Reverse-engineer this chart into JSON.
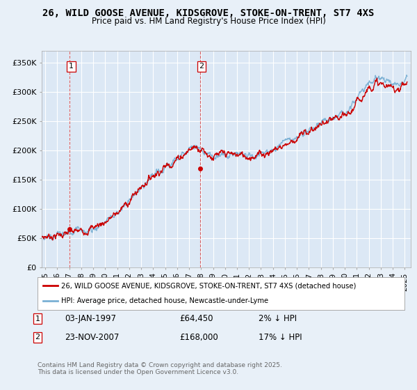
{
  "title_line1": "26, WILD GOOSE AVENUE, KIDSGROVE, STOKE-ON-TRENT, ST7 4XS",
  "title_line2": "Price paid vs. HM Land Registry's House Price Index (HPI)",
  "bg_color": "#e8f0f8",
  "plot_bg_color": "#dce8f5",
  "grid_color": "#ffffff",
  "line1_color": "#cc0000",
  "line2_color": "#7ab0d4",
  "marker1_color": "#cc0000",
  "vline_color": "#cc0000",
  "sale1_x": 1997.01,
  "sale1_y": 64450,
  "sale2_x": 2007.896,
  "sale2_y": 168000,
  "yticks": [
    0,
    50000,
    100000,
    150000,
    200000,
    250000,
    300000,
    350000
  ],
  "ytick_labels": [
    "£0",
    "£50K",
    "£100K",
    "£150K",
    "£200K",
    "£250K",
    "£300K",
    "£350K"
  ],
  "xtick_years": [
    1995,
    1996,
    1997,
    1998,
    1999,
    2000,
    2001,
    2002,
    2003,
    2004,
    2005,
    2006,
    2007,
    2008,
    2009,
    2010,
    2011,
    2012,
    2013,
    2014,
    2015,
    2016,
    2017,
    2018,
    2019,
    2020,
    2021,
    2022,
    2023,
    2024,
    2025
  ],
  "legend_label1": "26, WILD GOOSE AVENUE, KIDSGROVE, STOKE-ON-TRENT, ST7 4XS (detached house)",
  "legend_label2": "HPI: Average price, detached house, Newcastle-under-Lyme",
  "note1_label": "1",
  "note1_date": "03-JAN-1997",
  "note1_price": "£64,450",
  "note1_hpi": "2% ↓ HPI",
  "note2_label": "2",
  "note2_date": "23-NOV-2007",
  "note2_price": "£168,000",
  "note2_hpi": "17% ↓ HPI",
  "copyright": "Contains HM Land Registry data © Crown copyright and database right 2025.\nThis data is licensed under the Open Government Licence v3.0."
}
